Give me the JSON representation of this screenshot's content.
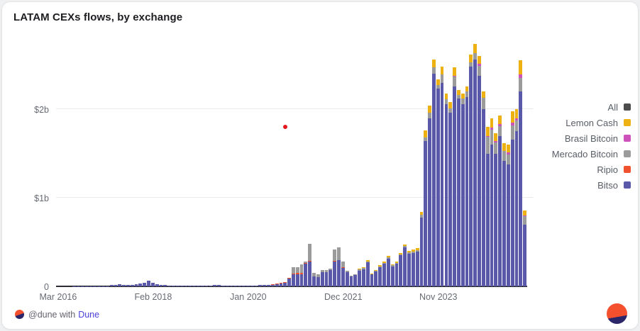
{
  "title": "LATAM CEXs flows, by exchange",
  "legend": {
    "items": [
      {
        "label": "All",
        "color": "#4d4d4d"
      },
      {
        "label": "Lemon Cash",
        "color": "#edb111"
      },
      {
        "label": "Brasil Bitcoin",
        "color": "#cd53bb"
      },
      {
        "label": "Mercado Bitcoin",
        "color": "#9b9b9b"
      },
      {
        "label": "Ripio",
        "color": "#f0512e"
      },
      {
        "label": "Bitso",
        "color": "#5a58a8"
      }
    ]
  },
  "footer": {
    "attribution_prefix": "@dune with",
    "attribution_link": "Dune"
  },
  "colors": {
    "page_background": "#eef0f1",
    "card_background": "#ffffff",
    "axis": "#2c2c30",
    "grid": "#e9e9ec",
    "tick_label": "#666a73",
    "link": "#4a3fd8",
    "logo_orange": "#f4502e",
    "logo_navy": "#2b2668"
  },
  "chart_data": {
    "type": "bar",
    "stacked": true,
    "units": "USD millions",
    "title": "LATAM CEXs flows, by exchange",
    "xlabel": "",
    "ylabel": "",
    "ylim": [
      0,
      2760
    ],
    "yticks": [
      {
        "label": "0",
        "value": 0
      },
      {
        "label": "$1b",
        "value": 1000
      },
      {
        "label": "$2b",
        "value": 2000
      }
    ],
    "xticks": [
      "Mar 2016",
      "Feb 2018",
      "Jan 2020",
      "Dec 2021",
      "Nov 2023"
    ],
    "legend_position": "right",
    "grid": "horizontal",
    "categories": [
      "Mar 2016",
      "Apr 2016",
      "May 2016",
      "Jun 2016",
      "Jul 2016",
      "Aug 2016",
      "Sep 2016",
      "Oct 2016",
      "Nov 2016",
      "Dec 2016",
      "Jan 2017",
      "Feb 2017",
      "Mar 2017",
      "Apr 2017",
      "May 2017",
      "Jun 2017",
      "Jul 2017",
      "Aug 2017",
      "Sep 2017",
      "Oct 2017",
      "Nov 2017",
      "Dec 2017",
      "Jan 2018",
      "Feb 2018",
      "Mar 2018",
      "Apr 2018",
      "May 2018",
      "Jun 2018",
      "Jul 2018",
      "Aug 2018",
      "Sep 2018",
      "Oct 2018",
      "Nov 2018",
      "Dec 2018",
      "Jan 2019",
      "Feb 2019",
      "Mar 2019",
      "Apr 2019",
      "May 2019",
      "Jun 2019",
      "Jul 2019",
      "Aug 2019",
      "Sep 2019",
      "Oct 2019",
      "Nov 2019",
      "Dec 2019",
      "Jan 2020",
      "Feb 2020",
      "Mar 2020",
      "Apr 2020",
      "May 2020",
      "Jun 2020",
      "Jul 2020",
      "Aug 2020",
      "Sep 2020",
      "Oct 2020",
      "Nov 2020",
      "Dec 2020",
      "Jan 2021",
      "Feb 2021",
      "Mar 2021",
      "Apr 2021",
      "May 2021",
      "Jun 2021",
      "Jul 2021",
      "Aug 2021",
      "Sep 2021",
      "Oct 2021",
      "Nov 2021",
      "Dec 2021",
      "Jan 2022",
      "Feb 2022",
      "Mar 2022",
      "Apr 2022",
      "May 2022",
      "Jun 2022",
      "Jul 2022",
      "Aug 2022",
      "Sep 2022",
      "Oct 2022",
      "Nov 2022",
      "Dec 2022",
      "Jan 2023",
      "Feb 2023",
      "Mar 2023",
      "Apr 2023",
      "May 2023",
      "Jun 2023",
      "Jul 2023",
      "Aug 2023",
      "Sep 2023",
      "Oct 2023",
      "Nov 2023",
      "Dec 2023",
      "Jan 2024",
      "Feb 2024",
      "Mar 2024",
      "Apr 2024",
      "May 2024",
      "Jun 2024",
      "Jul 2024",
      "Aug 2024",
      "Sep 2024",
      "Oct 2024",
      "Nov 2024",
      "Dec 2024",
      "Jan 2025",
      "Feb 2025",
      "Mar 2025",
      "Apr 2025",
      "May 2025",
      "Jun 2025",
      "Jul 2025",
      "Aug 2025"
    ],
    "series": [
      {
        "name": "Bitso",
        "color": "#5a58a8",
        "values": [
          0,
          0,
          0,
          0,
          1,
          1,
          1,
          2,
          2,
          2,
          3,
          3,
          4,
          16,
          20,
          24,
          18,
          16,
          20,
          28,
          32,
          40,
          63,
          40,
          25,
          20,
          16,
          12,
          10,
          8,
          8,
          8,
          6,
          6,
          6,
          6,
          8,
          12,
          16,
          14,
          10,
          8,
          8,
          6,
          6,
          8,
          8,
          10,
          12,
          14,
          18,
          20,
          20,
          24,
          32,
          40,
          85,
          135,
          140,
          140,
          260,
          280,
          110,
          105,
          160,
          160,
          185,
          280,
          295,
          210,
          160,
          115,
          125,
          180,
          195,
          270,
          135,
          170,
          215,
          255,
          310,
          225,
          255,
          350,
          440,
          370,
          380,
          395,
          780,
          1640,
          1900,
          2400,
          2230,
          2300,
          2060,
          1960,
          2260,
          2120,
          2060,
          2140,
          2480,
          2560,
          2380,
          2000,
          1500,
          1600,
          1500,
          1700,
          1420,
          1380,
          1660,
          1750,
          2200,
          700
        ]
      },
      {
        "name": "Ripio",
        "color": "#f0512e",
        "values": [
          0,
          0,
          0,
          0,
          0,
          0,
          0,
          0,
          0,
          0,
          0,
          0,
          0,
          0,
          0,
          0,
          0,
          0,
          0,
          0,
          0,
          0,
          0,
          0,
          0,
          0,
          0,
          0,
          0,
          0,
          0,
          0,
          0,
          0,
          0,
          0,
          0,
          0,
          0,
          0,
          0,
          0,
          0,
          0,
          0,
          0,
          0,
          0,
          0,
          0,
          0,
          0,
          4,
          6,
          8,
          8,
          8,
          12,
          10,
          12,
          8,
          12,
          4,
          3,
          3,
          3,
          3,
          5,
          5,
          3,
          2,
          0,
          0,
          0,
          0,
          0,
          0,
          0,
          0,
          0,
          0,
          0,
          0,
          0,
          0,
          0,
          0,
          0,
          0,
          0,
          0,
          0,
          0,
          0,
          0,
          0,
          0,
          0,
          0,
          0,
          0,
          0,
          0,
          0,
          0,
          0,
          0,
          0,
          0,
          0,
          0,
          0,
          0,
          0
        ]
      },
      {
        "name": "Mercado Bitcoin",
        "color": "#9b9b9b",
        "values": [
          0,
          0,
          0,
          0,
          0,
          0,
          0,
          0,
          0,
          0,
          0,
          0,
          0,
          0,
          0,
          0,
          0,
          0,
          0,
          0,
          0,
          0,
          0,
          0,
          0,
          0,
          0,
          0,
          0,
          0,
          0,
          0,
          0,
          0,
          0,
          0,
          0,
          0,
          0,
          0,
          0,
          0,
          0,
          0,
          0,
          0,
          0,
          0,
          0,
          0,
          0,
          0,
          0,
          0,
          0,
          0,
          0,
          68,
          65,
          100,
          15,
          185,
          35,
          30,
          25,
          25,
          15,
          135,
          140,
          70,
          15,
          5,
          10,
          12,
          10,
          12,
          5,
          8,
          12,
          10,
          15,
          12,
          12,
          12,
          15,
          12,
          15,
          15,
          25,
          40,
          60,
          70,
          40,
          90,
          50,
          50,
          110,
          40,
          60,
          60,
          50,
          70,
          110,
          130,
          185,
          170,
          125,
          105,
          110,
          110,
          160,
          125,
          150,
          90
        ]
      },
      {
        "name": "Brasil Bitcoin",
        "color": "#cd53bb",
        "values": [
          0,
          0,
          0,
          0,
          0,
          0,
          0,
          0,
          0,
          0,
          0,
          0,
          0,
          0,
          0,
          0,
          0,
          0,
          0,
          0,
          0,
          0,
          0,
          0,
          0,
          0,
          0,
          0,
          0,
          0,
          0,
          0,
          0,
          0,
          0,
          0,
          0,
          0,
          0,
          0,
          0,
          0,
          0,
          0,
          0,
          0,
          0,
          0,
          0,
          0,
          0,
          0,
          0,
          0,
          0,
          0,
          0,
          0,
          0,
          0,
          0,
          0,
          0,
          0,
          0,
          0,
          0,
          0,
          0,
          0,
          0,
          0,
          0,
          0,
          0,
          0,
          0,
          0,
          0,
          0,
          0,
          0,
          0,
          0,
          0,
          0,
          0,
          0,
          0,
          0,
          0,
          0,
          0,
          0,
          0,
          0,
          10,
          0,
          0,
          0,
          0,
          0,
          20,
          0,
          15,
          20,
          15,
          25,
          0,
          20,
          30,
          25,
          40,
          10
        ]
      },
      {
        "name": "Lemon Cash",
        "color": "#edb111",
        "values": [
          0,
          0,
          0,
          0,
          0,
          0,
          0,
          0,
          0,
          0,
          0,
          0,
          0,
          0,
          0,
          0,
          0,
          0,
          0,
          0,
          0,
          0,
          0,
          0,
          0,
          0,
          0,
          0,
          0,
          0,
          0,
          0,
          0,
          0,
          0,
          0,
          0,
          0,
          0,
          0,
          0,
          0,
          0,
          0,
          0,
          0,
          0,
          0,
          0,
          0,
          0,
          0,
          0,
          0,
          0,
          0,
          0,
          0,
          0,
          0,
          0,
          0,
          0,
          0,
          0,
          0,
          0,
          0,
          0,
          0,
          0,
          0,
          0,
          8,
          10,
          13,
          5,
          7,
          13,
          15,
          20,
          13,
          13,
          18,
          20,
          18,
          20,
          20,
          35,
          80,
          80,
          90,
          70,
          90,
          70,
          70,
          90,
          60,
          60,
          60,
          90,
          110,
          90,
          70,
          100,
          110,
          90,
          100,
          90,
          90,
          130,
          100,
          160,
          60
        ]
      }
    ],
    "annotations": [
      {
        "type": "point",
        "label": "stray-red-dot",
        "month": "Oct 2020",
        "value_musd": 1800,
        "color": "#e3181d"
      }
    ]
  }
}
